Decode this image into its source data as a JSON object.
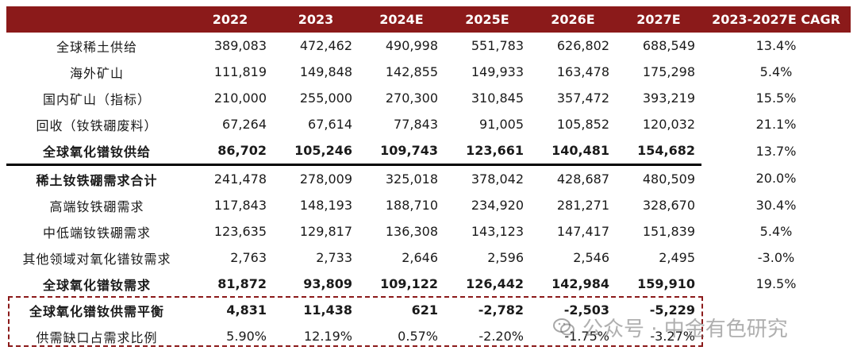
{
  "header": {
    "columns": [
      "",
      "2022",
      "2023",
      "2024E",
      "2025E",
      "2026E",
      "2027E",
      "2023-2027E CAGR"
    ]
  },
  "rows": [
    {
      "label": "全球稀土供给",
      "values": [
        "389,083",
        "472,462",
        "490,998",
        "551,783",
        "626,802",
        "688,549"
      ],
      "cagr": "13.4%"
    },
    {
      "label": "海外矿山",
      "values": [
        "111,819",
        "149,848",
        "142,855",
        "149,933",
        "163,478",
        "175,298"
      ],
      "cagr": "5.4%"
    },
    {
      "label": "国内矿山（指标）",
      "values": [
        "210,000",
        "255,000",
        "270,300",
        "310,845",
        "357,472",
        "393,219"
      ],
      "cagr": "15.5%"
    },
    {
      "label": "回收（钕铁硼废料）",
      "values": [
        "67,264",
        "67,614",
        "77,843",
        "91,005",
        "105,852",
        "120,032"
      ],
      "cagr": "21.1%"
    },
    {
      "label": "全球氧化镨钕供给",
      "values": [
        "86,702",
        "105,246",
        "109,743",
        "123,661",
        "140,481",
        "154,682"
      ],
      "cagr": "13.7%"
    },
    {
      "label": "稀土钕铁硼需求合计",
      "values": [
        "241,478",
        "278,009",
        "325,018",
        "378,042",
        "428,687",
        "480,509"
      ],
      "cagr": "20.0%"
    },
    {
      "label": "高端钕铁硼需求",
      "values": [
        "117,843",
        "148,193",
        "188,710",
        "234,920",
        "281,271",
        "328,670"
      ],
      "cagr": "30.4%"
    },
    {
      "label": "中低端钕铁硼需求",
      "values": [
        "123,635",
        "129,817",
        "136,308",
        "143,123",
        "147,417",
        "151,839"
      ],
      "cagr": "5.4%"
    },
    {
      "label": "其他领域对氧化镨钕需求",
      "values": [
        "2,763",
        "2,733",
        "2,646",
        "2,596",
        "2,546",
        "2,495"
      ],
      "cagr": "-3.0%"
    },
    {
      "label": "全球氧化镨钕需求",
      "values": [
        "81,872",
        "93,809",
        "109,122",
        "126,442",
        "142,984",
        "159,910"
      ],
      "cagr": "19.5%"
    },
    {
      "label": "全球氧化镨钕供需平衡",
      "values": [
        "4,831",
        "11,438",
        "621",
        "-2,782",
        "-2,503",
        "-5,229"
      ],
      "cagr": ""
    },
    {
      "label": "供需缺口占需求比例",
      "values": [
        "5.90%",
        "12.19%",
        "0.57%",
        "-2.20%",
        "-1.75%",
        "-3.27%"
      ],
      "cagr": ""
    }
  ],
  "watermark": {
    "text": "公众号 · 中金有色研究",
    "icon": "wechat-icon"
  },
  "colors": {
    "header_bg": "#8b1a1a",
    "box_border": "#8b1a1a"
  }
}
